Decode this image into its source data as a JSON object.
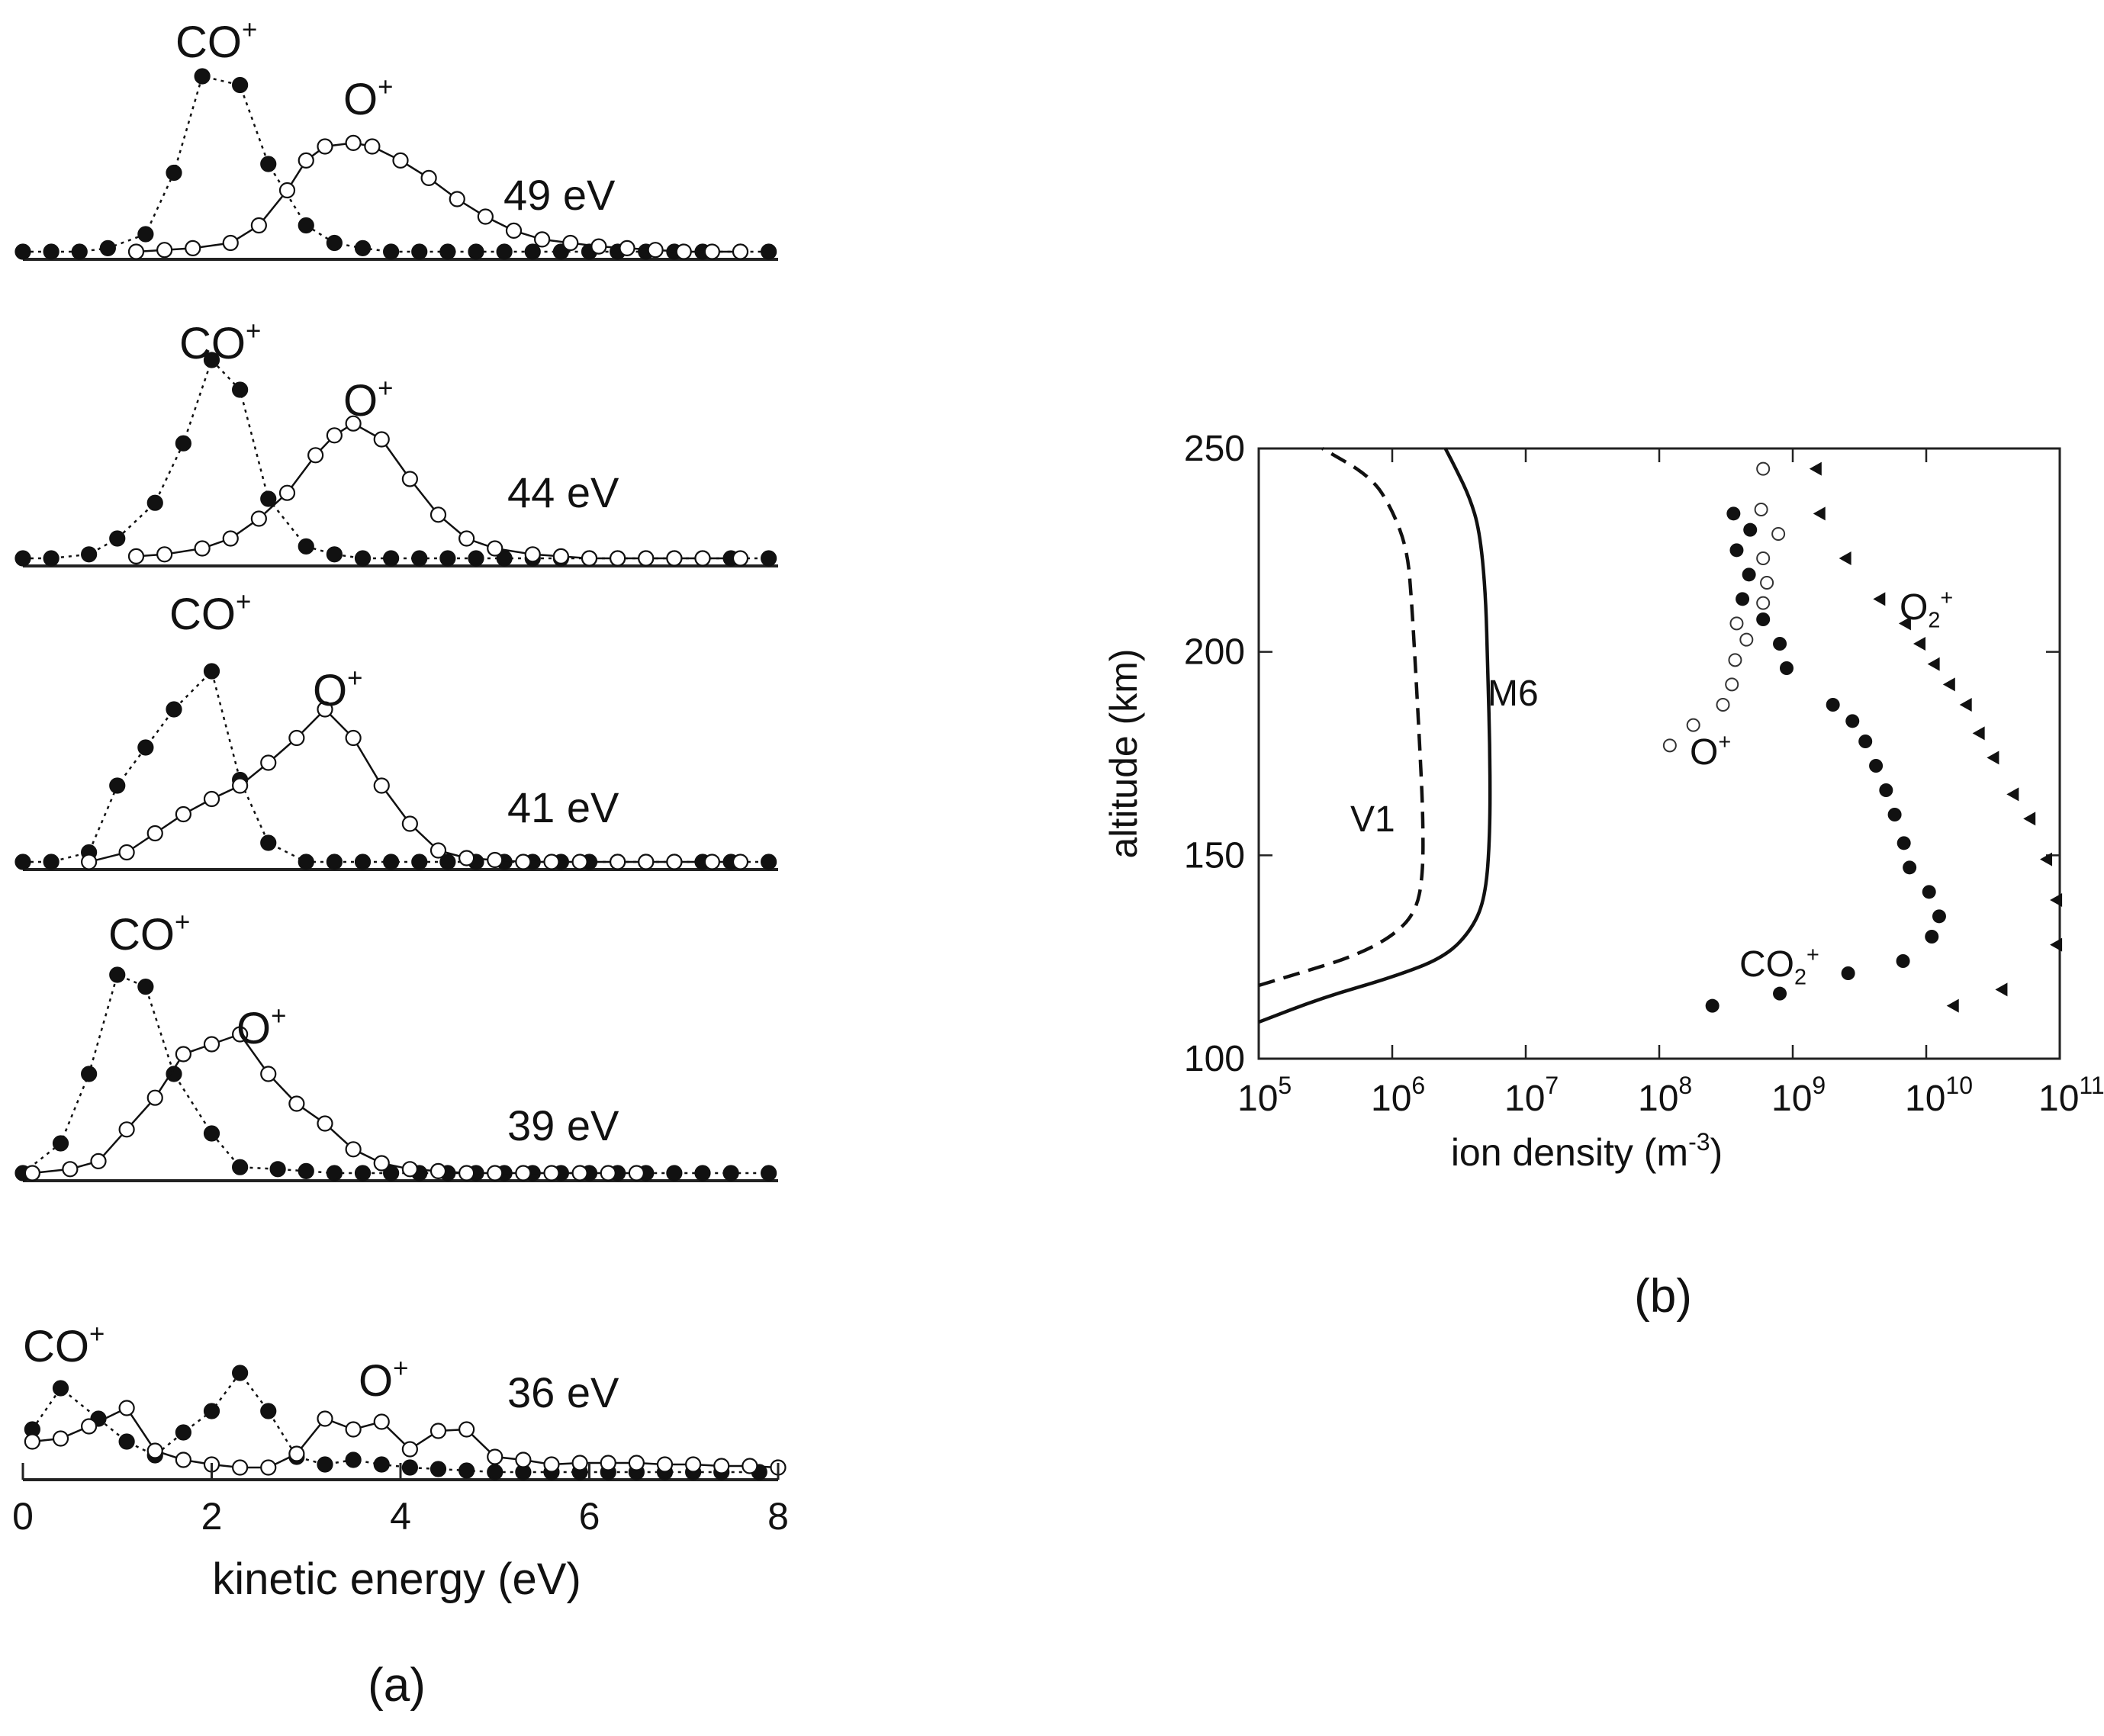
{
  "chart_data": [
    {
      "panel": "(a)",
      "type": "line",
      "xlabel": "kinetic energy (eV)",
      "xlim": [
        0,
        8
      ],
      "x_ticks": [
        "0",
        "2",
        "4",
        "6",
        "8"
      ],
      "legend": "labels placed near peaks",
      "energy_x": [
        0.0,
        0.3,
        0.6,
        1.0,
        1.3,
        1.6,
        1.9,
        2.2,
        2.5,
        2.8,
        3.1,
        3.4,
        3.7,
        4.0,
        4.3,
        4.6,
        4.9,
        5.2,
        5.5,
        5.8,
        6.1,
        6.4,
        6.7,
        7.0,
        7.3,
        7.6,
        7.9
      ],
      "panels": [
        {
          "energy_label": "49 eV",
          "series": [
            {
              "name": "CO⁺",
              "marker": "filled-circle",
              "line": "dotted",
              "x": [
                0.0,
                0.3,
                0.6,
                0.9,
                1.3,
                1.6,
                1.9,
                2.3,
                2.6,
                3.0,
                3.3,
                3.6,
                3.9,
                4.2,
                4.5,
                4.8,
                5.1,
                5.4,
                5.7,
                6.0,
                6.3,
                6.6,
                6.9,
                7.2,
                7.6,
                7.9
              ],
              "y": [
                0.0,
                0.0,
                0.0,
                0.02,
                0.1,
                0.45,
                1.0,
                0.95,
                0.5,
                0.15,
                0.05,
                0.02,
                0.0,
                0.0,
                0.0,
                0.0,
                0.0,
                0.0,
                0.0,
                0.0,
                0.0,
                0.0,
                0.0,
                0.0,
                0.0,
                0.0
              ]
            },
            {
              "name": "O⁺",
              "marker": "open-circle",
              "line": "solid",
              "x": [
                1.2,
                1.5,
                1.8,
                2.2,
                2.5,
                2.8,
                3.0,
                3.2,
                3.5,
                3.7,
                4.0,
                4.3,
                4.6,
                4.9,
                5.2,
                5.5,
                5.8,
                6.1,
                6.4,
                6.7,
                7.0,
                7.3,
                7.6
              ],
              "y": [
                0.0,
                0.01,
                0.02,
                0.05,
                0.15,
                0.35,
                0.52,
                0.6,
                0.62,
                0.6,
                0.52,
                0.42,
                0.3,
                0.2,
                0.12,
                0.07,
                0.05,
                0.03,
                0.02,
                0.01,
                0.0,
                0.0,
                0.0
              ]
            }
          ]
        },
        {
          "energy_label": "44 eV",
          "series": [
            {
              "name": "CO⁺",
              "marker": "filled-circle",
              "line": "dotted",
              "x": [
                0.0,
                0.3,
                0.7,
                1.0,
                1.4,
                1.7,
                2.0,
                2.3,
                2.6,
                3.0,
                3.3,
                3.6,
                3.9,
                4.2,
                4.5,
                4.8,
                5.1,
                5.4,
                5.7,
                6.0,
                6.3,
                6.6,
                6.9,
                7.2,
                7.5,
                7.9
              ],
              "y": [
                0.0,
                0.0,
                0.02,
                0.1,
                0.28,
                0.58,
                1.0,
                0.85,
                0.3,
                0.06,
                0.02,
                0.0,
                0.0,
                0.0,
                0.0,
                0.0,
                0.0,
                0.0,
                0.0,
                0.0,
                0.0,
                0.0,
                0.0,
                0.0,
                0.0,
                0.0
              ]
            },
            {
              "name": "O⁺",
              "marker": "open-circle",
              "line": "solid",
              "x": [
                1.2,
                1.5,
                1.9,
                2.2,
                2.5,
                2.8,
                3.1,
                3.3,
                3.5,
                3.8,
                4.1,
                4.4,
                4.7,
                5.0,
                5.4,
                5.7,
                6.0,
                6.3,
                6.6,
                6.9,
                7.2,
                7.6
              ],
              "y": [
                0.01,
                0.02,
                0.05,
                0.1,
                0.2,
                0.33,
                0.52,
                0.62,
                0.68,
                0.6,
                0.4,
                0.22,
                0.1,
                0.05,
                0.02,
                0.01,
                0.0,
                0.0,
                0.0,
                0.0,
                0.0,
                0.0
              ]
            }
          ]
        },
        {
          "energy_label": "41 eV",
          "series": [
            {
              "name": "CO⁺",
              "marker": "filled-circle",
              "line": "dotted",
              "x": [
                0.0,
                0.3,
                0.7,
                1.0,
                1.3,
                1.6,
                2.0,
                2.3,
                2.6,
                3.0,
                3.3,
                3.6,
                3.9,
                4.2,
                4.5,
                4.8,
                5.1,
                5.4,
                5.7,
                6.0,
                6.3,
                6.6,
                6.9,
                7.2,
                7.5,
                7.9
              ],
              "y": [
                0.0,
                0.0,
                0.05,
                0.4,
                0.6,
                0.8,
                1.0,
                0.43,
                0.1,
                0.0,
                0.0,
                0.0,
                0.0,
                0.0,
                0.0,
                0.0,
                0.0,
                0.0,
                0.0,
                0.0,
                0.0,
                0.0,
                0.0,
                0.0,
                0.0,
                0.0
              ]
            },
            {
              "name": "O⁺",
              "marker": "open-circle",
              "line": "solid",
              "x": [
                0.7,
                1.1,
                1.4,
                1.7,
                2.0,
                2.3,
                2.6,
                2.9,
                3.2,
                3.5,
                3.8,
                4.1,
                4.4,
                4.7,
                5.0,
                5.3,
                5.6,
                5.9,
                6.3,
                6.6,
                6.9,
                7.3,
                7.6
              ],
              "y": [
                0.0,
                0.05,
                0.15,
                0.25,
                0.33,
                0.4,
                0.52,
                0.65,
                0.8,
                0.65,
                0.4,
                0.2,
                0.06,
                0.02,
                0.01,
                0.0,
                0.0,
                0.0,
                0.0,
                0.0,
                0.0,
                0.0,
                0.0
              ]
            }
          ]
        },
        {
          "energy_label": "39 eV",
          "series": [
            {
              "name": "CO⁺",
              "marker": "filled-circle",
              "line": "dotted",
              "x": [
                0.0,
                0.4,
                0.7,
                1.0,
                1.3,
                1.6,
                2.0,
                2.3,
                2.7,
                3.0,
                3.3,
                3.6,
                3.9,
                4.2,
                4.5,
                4.8,
                5.1,
                5.4,
                5.7,
                6.0,
                6.3,
                6.6,
                6.9,
                7.2,
                7.5,
                7.9
              ],
              "y": [
                0.0,
                0.15,
                0.5,
                1.0,
                0.94,
                0.5,
                0.2,
                0.03,
                0.02,
                0.01,
                0.0,
                0.0,
                0.0,
                0.0,
                0.0,
                0.0,
                0.0,
                0.0,
                0.0,
                0.0,
                0.0,
                0.0,
                0.0,
                0.0,
                0.0,
                0.0
              ]
            },
            {
              "name": "O⁺",
              "marker": "open-circle",
              "line": "solid",
              "x": [
                0.1,
                0.5,
                0.8,
                1.1,
                1.4,
                1.7,
                2.0,
                2.3,
                2.6,
                2.9,
                3.2,
                3.5,
                3.8,
                4.1,
                4.4,
                4.7,
                5.0,
                5.3,
                5.6,
                5.9,
                6.2,
                6.5
              ],
              "y": [
                0.0,
                0.02,
                0.06,
                0.22,
                0.38,
                0.6,
                0.65,
                0.7,
                0.5,
                0.35,
                0.25,
                0.12,
                0.05,
                0.02,
                0.01,
                0.0,
                0.0,
                0.0,
                0.0,
                0.0,
                0.0,
                0.0
              ]
            }
          ]
        },
        {
          "energy_label": "36 eV",
          "series": [
            {
              "name": "CO⁺",
              "marker": "filled-circle",
              "line": "dotted",
              "x": [
                0.1,
                0.4,
                0.8,
                1.1,
                1.4,
                1.7,
                2.0,
                2.3,
                2.6,
                2.9,
                3.2,
                3.5,
                3.8,
                4.1,
                4.4,
                4.7,
                5.0,
                5.3,
                5.6,
                5.9,
                6.2,
                6.5,
                6.8,
                7.1,
                7.4,
                7.8
              ],
              "y": [
                0.28,
                0.55,
                0.35,
                0.2,
                0.11,
                0.26,
                0.4,
                0.65,
                0.4,
                0.1,
                0.05,
                0.08,
                0.05,
                0.03,
                0.02,
                0.01,
                0.0,
                0.0,
                0.0,
                0.0,
                0.0,
                0.0,
                0.0,
                0.0,
                0.0,
                0.0
              ]
            },
            {
              "name": "O⁺",
              "marker": "open-circle",
              "line": "solid",
              "x": [
                0.1,
                0.4,
                0.7,
                1.1,
                1.4,
                1.7,
                2.0,
                2.3,
                2.6,
                2.9,
                3.2,
                3.5,
                3.8,
                4.1,
                4.4,
                4.7,
                5.0,
                5.3,
                5.6,
                5.9,
                6.2,
                6.5,
                6.8,
                7.1,
                7.4,
                7.7,
                8.0
              ],
              "y": [
                0.2,
                0.22,
                0.3,
                0.42,
                0.14,
                0.08,
                0.05,
                0.03,
                0.03,
                0.12,
                0.35,
                0.28,
                0.33,
                0.15,
                0.27,
                0.28,
                0.1,
                0.08,
                0.05,
                0.06,
                0.06,
                0.06,
                0.05,
                0.05,
                0.04,
                0.04,
                0.03
              ]
            }
          ]
        }
      ]
    },
    {
      "panel": "(b)",
      "type": "scatter",
      "xlabel": "ion density (m",
      "xlabel_sup": "-3",
      "xlabel_close": ")",
      "ylabel": "altitude (km)",
      "xscale": "log",
      "xlim": [
        100000,
        100000000000
      ],
      "ylim": [
        100,
        250
      ],
      "x_ticks": [
        {
          "base": "10",
          "exp": "5"
        },
        {
          "base": "10",
          "exp": "6"
        },
        {
          "base": "10",
          "exp": "7"
        },
        {
          "base": "10",
          "exp": "8"
        },
        {
          "base": "10",
          "exp": "9"
        },
        {
          "base": "10",
          "exp": "10"
        },
        {
          "base": "10",
          "exp": "11"
        }
      ],
      "y_ticks": [
        "100",
        "150",
        "200",
        "250"
      ],
      "curves": [
        {
          "name": "V1",
          "style": "dashed",
          "x": [
            100000,
            200000,
            500000,
            1000000,
            1500000,
            1700000,
            1700000,
            1600000,
            1500000,
            1400000,
            1300000,
            1000000,
            700000,
            300000
          ],
          "y": [
            118,
            121,
            125,
            130,
            136,
            145,
            160,
            178,
            195,
            212,
            225,
            235,
            243,
            250
          ]
        },
        {
          "name": "M6",
          "style": "solid",
          "x": [
            100000,
            300000,
            1000000,
            2500000,
            4000000,
            5000000,
            5400000,
            5400000,
            5200000,
            5000000,
            4500000,
            3800000,
            3000000,
            2500000
          ],
          "y": [
            109,
            115,
            120,
            125,
            132,
            140,
            155,
            175,
            195,
            215,
            230,
            238,
            245,
            250
          ]
        }
      ],
      "series": [
        {
          "name": "O₂⁺",
          "marker": "filled-triangle-left",
          "x": [
            1500000000,
            1600000000,
            2500000000,
            4500000000,
            7000000000,
            9000000000,
            11500000000,
            15000000000,
            20000000000,
            25000000000,
            32000000000,
            45000000000,
            60000000000,
            80000000000,
            95000000000,
            95000000000,
            37000000000,
            16000000000
          ],
          "y": [
            245,
            234,
            223,
            213,
            207,
            202,
            197,
            192,
            187,
            180,
            174,
            165,
            159,
            149,
            139,
            128,
            117,
            113
          ]
        },
        {
          "name": "CO₂⁺",
          "marker": "filled-circle",
          "x": [
            360000000,
            480000000,
            380000000,
            470000000,
            420000000,
            600000000,
            800000000,
            900000000,
            2000000000,
            2800000000,
            3500000000,
            4200000000,
            5000000000,
            5800000000,
            6800000000,
            7500000000,
            10500000000,
            12500000000,
            11000000000,
            6700000000,
            2600000000,
            800000000,
            250000000
          ],
          "y": [
            234,
            230,
            225,
            219,
            213,
            208,
            202,
            196,
            187,
            183,
            178,
            172,
            166,
            160,
            153,
            147,
            141,
            135,
            130,
            124,
            121,
            116,
            113
          ]
        },
        {
          "name": "O⁺",
          "marker": "open-circle",
          "x": [
            600000000,
            580000000,
            780000000,
            600000000,
            640000000,
            600000000,
            380000000,
            450000000,
            370000000,
            350000000,
            300000000,
            180000000,
            120000000
          ],
          "y": [
            245,
            235,
            229,
            223,
            217,
            212,
            207,
            203,
            198,
            192,
            187,
            182,
            177
          ]
        }
      ],
      "labels": [
        "V1",
        "M6",
        "O₂⁺",
        "O⁺",
        "CO₂⁺"
      ]
    }
  ],
  "captions": {
    "a": "(a)",
    "b": "(b)"
  }
}
